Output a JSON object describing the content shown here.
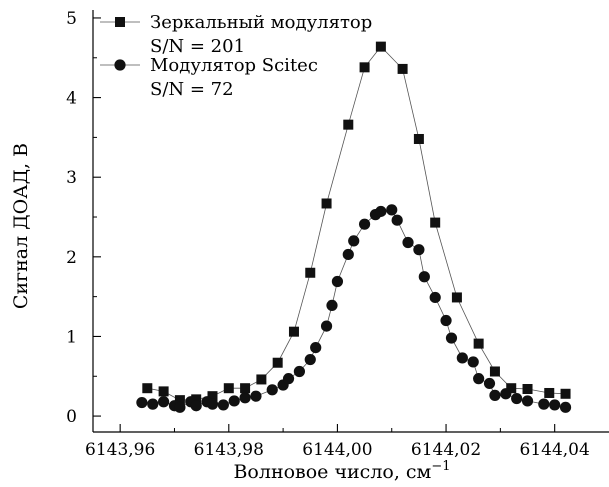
{
  "chart_data": {
    "type": "scatter",
    "xlabel": "Волновое число, см",
    "xlabel_sup": "−1",
    "ylabel": "Сигнал ДОАД, В",
    "xlim": [
      6143.955,
      6144.05
    ],
    "ylim": [
      -0.2,
      5.1
    ],
    "x_ticks": [
      6143.96,
      6143.98,
      6144.0,
      6144.02,
      6144.04
    ],
    "x_tick_labels": [
      "6143,96",
      "6143,98",
      "6144,00",
      "6144,02",
      "6144,04"
    ],
    "y_ticks": [
      0,
      1,
      2,
      3,
      4,
      5
    ],
    "y_tick_labels": [
      "0",
      "1",
      "2",
      "3",
      "4",
      "5"
    ],
    "grid": false,
    "legend_position": "top-left",
    "series": [
      {
        "name": "Зеркальный модулятор",
        "note": "S/N = 201",
        "marker": "square",
        "connected": true,
        "color": "#111111",
        "points": [
          [
            6143.965,
            0.35
          ],
          [
            6143.968,
            0.31
          ],
          [
            6143.971,
            0.2
          ],
          [
            6143.974,
            0.21
          ],
          [
            6143.977,
            0.25
          ],
          [
            6143.98,
            0.35
          ],
          [
            6143.983,
            0.35
          ],
          [
            6143.986,
            0.46
          ],
          [
            6143.989,
            0.67
          ],
          [
            6143.992,
            1.06
          ],
          [
            6143.995,
            1.8
          ],
          [
            6143.998,
            2.67
          ],
          [
            6144.002,
            3.66
          ],
          [
            6144.005,
            4.38
          ],
          [
            6144.008,
            4.64
          ],
          [
            6144.012,
            4.36
          ],
          [
            6144.015,
            3.48
          ],
          [
            6144.018,
            2.43
          ],
          [
            6144.022,
            1.49
          ],
          [
            6144.026,
            0.91
          ],
          [
            6144.029,
            0.56
          ],
          [
            6144.032,
            0.35
          ],
          [
            6144.035,
            0.34
          ],
          [
            6144.039,
            0.29
          ],
          [
            6144.042,
            0.28
          ]
        ]
      },
      {
        "name": "Модулятор Scitec",
        "note": "S/N = 72",
        "marker": "circle",
        "connected": true,
        "color": "#111111",
        "points": [
          [
            6143.964,
            0.17
          ],
          [
            6143.966,
            0.15
          ],
          [
            6143.968,
            0.18
          ],
          [
            6143.97,
            0.13
          ],
          [
            6143.971,
            0.11
          ],
          [
            6143.973,
            0.18
          ],
          [
            6143.974,
            0.13
          ],
          [
            6143.976,
            0.18
          ],
          [
            6143.977,
            0.15
          ],
          [
            6143.979,
            0.14
          ],
          [
            6143.981,
            0.19
          ],
          [
            6143.983,
            0.23
          ],
          [
            6143.985,
            0.25
          ],
          [
            6143.988,
            0.33
          ],
          [
            6143.99,
            0.39
          ],
          [
            6143.991,
            0.47
          ],
          [
            6143.993,
            0.56
          ],
          [
            6143.995,
            0.71
          ],
          [
            6143.996,
            0.86
          ],
          [
            6143.998,
            1.13
          ],
          [
            6143.999,
            1.39
          ],
          [
            6144.0,
            1.69
          ],
          [
            6144.002,
            2.03
          ],
          [
            6144.003,
            2.2
          ],
          [
            6144.005,
            2.41
          ],
          [
            6144.007,
            2.53
          ],
          [
            6144.008,
            2.57
          ],
          [
            6144.01,
            2.59
          ],
          [
            6144.011,
            2.46
          ],
          [
            6144.013,
            2.18
          ],
          [
            6144.015,
            2.09
          ],
          [
            6144.016,
            1.75
          ],
          [
            6144.018,
            1.49
          ],
          [
            6144.02,
            1.2
          ],
          [
            6144.021,
            0.98
          ],
          [
            6144.023,
            0.73
          ],
          [
            6144.025,
            0.68
          ],
          [
            6144.026,
            0.47
          ],
          [
            6144.028,
            0.41
          ],
          [
            6144.029,
            0.26
          ],
          [
            6144.031,
            0.28
          ],
          [
            6144.033,
            0.22
          ],
          [
            6144.035,
            0.19
          ],
          [
            6144.038,
            0.15
          ],
          [
            6144.04,
            0.14
          ],
          [
            6144.042,
            0.11
          ]
        ]
      }
    ]
  }
}
